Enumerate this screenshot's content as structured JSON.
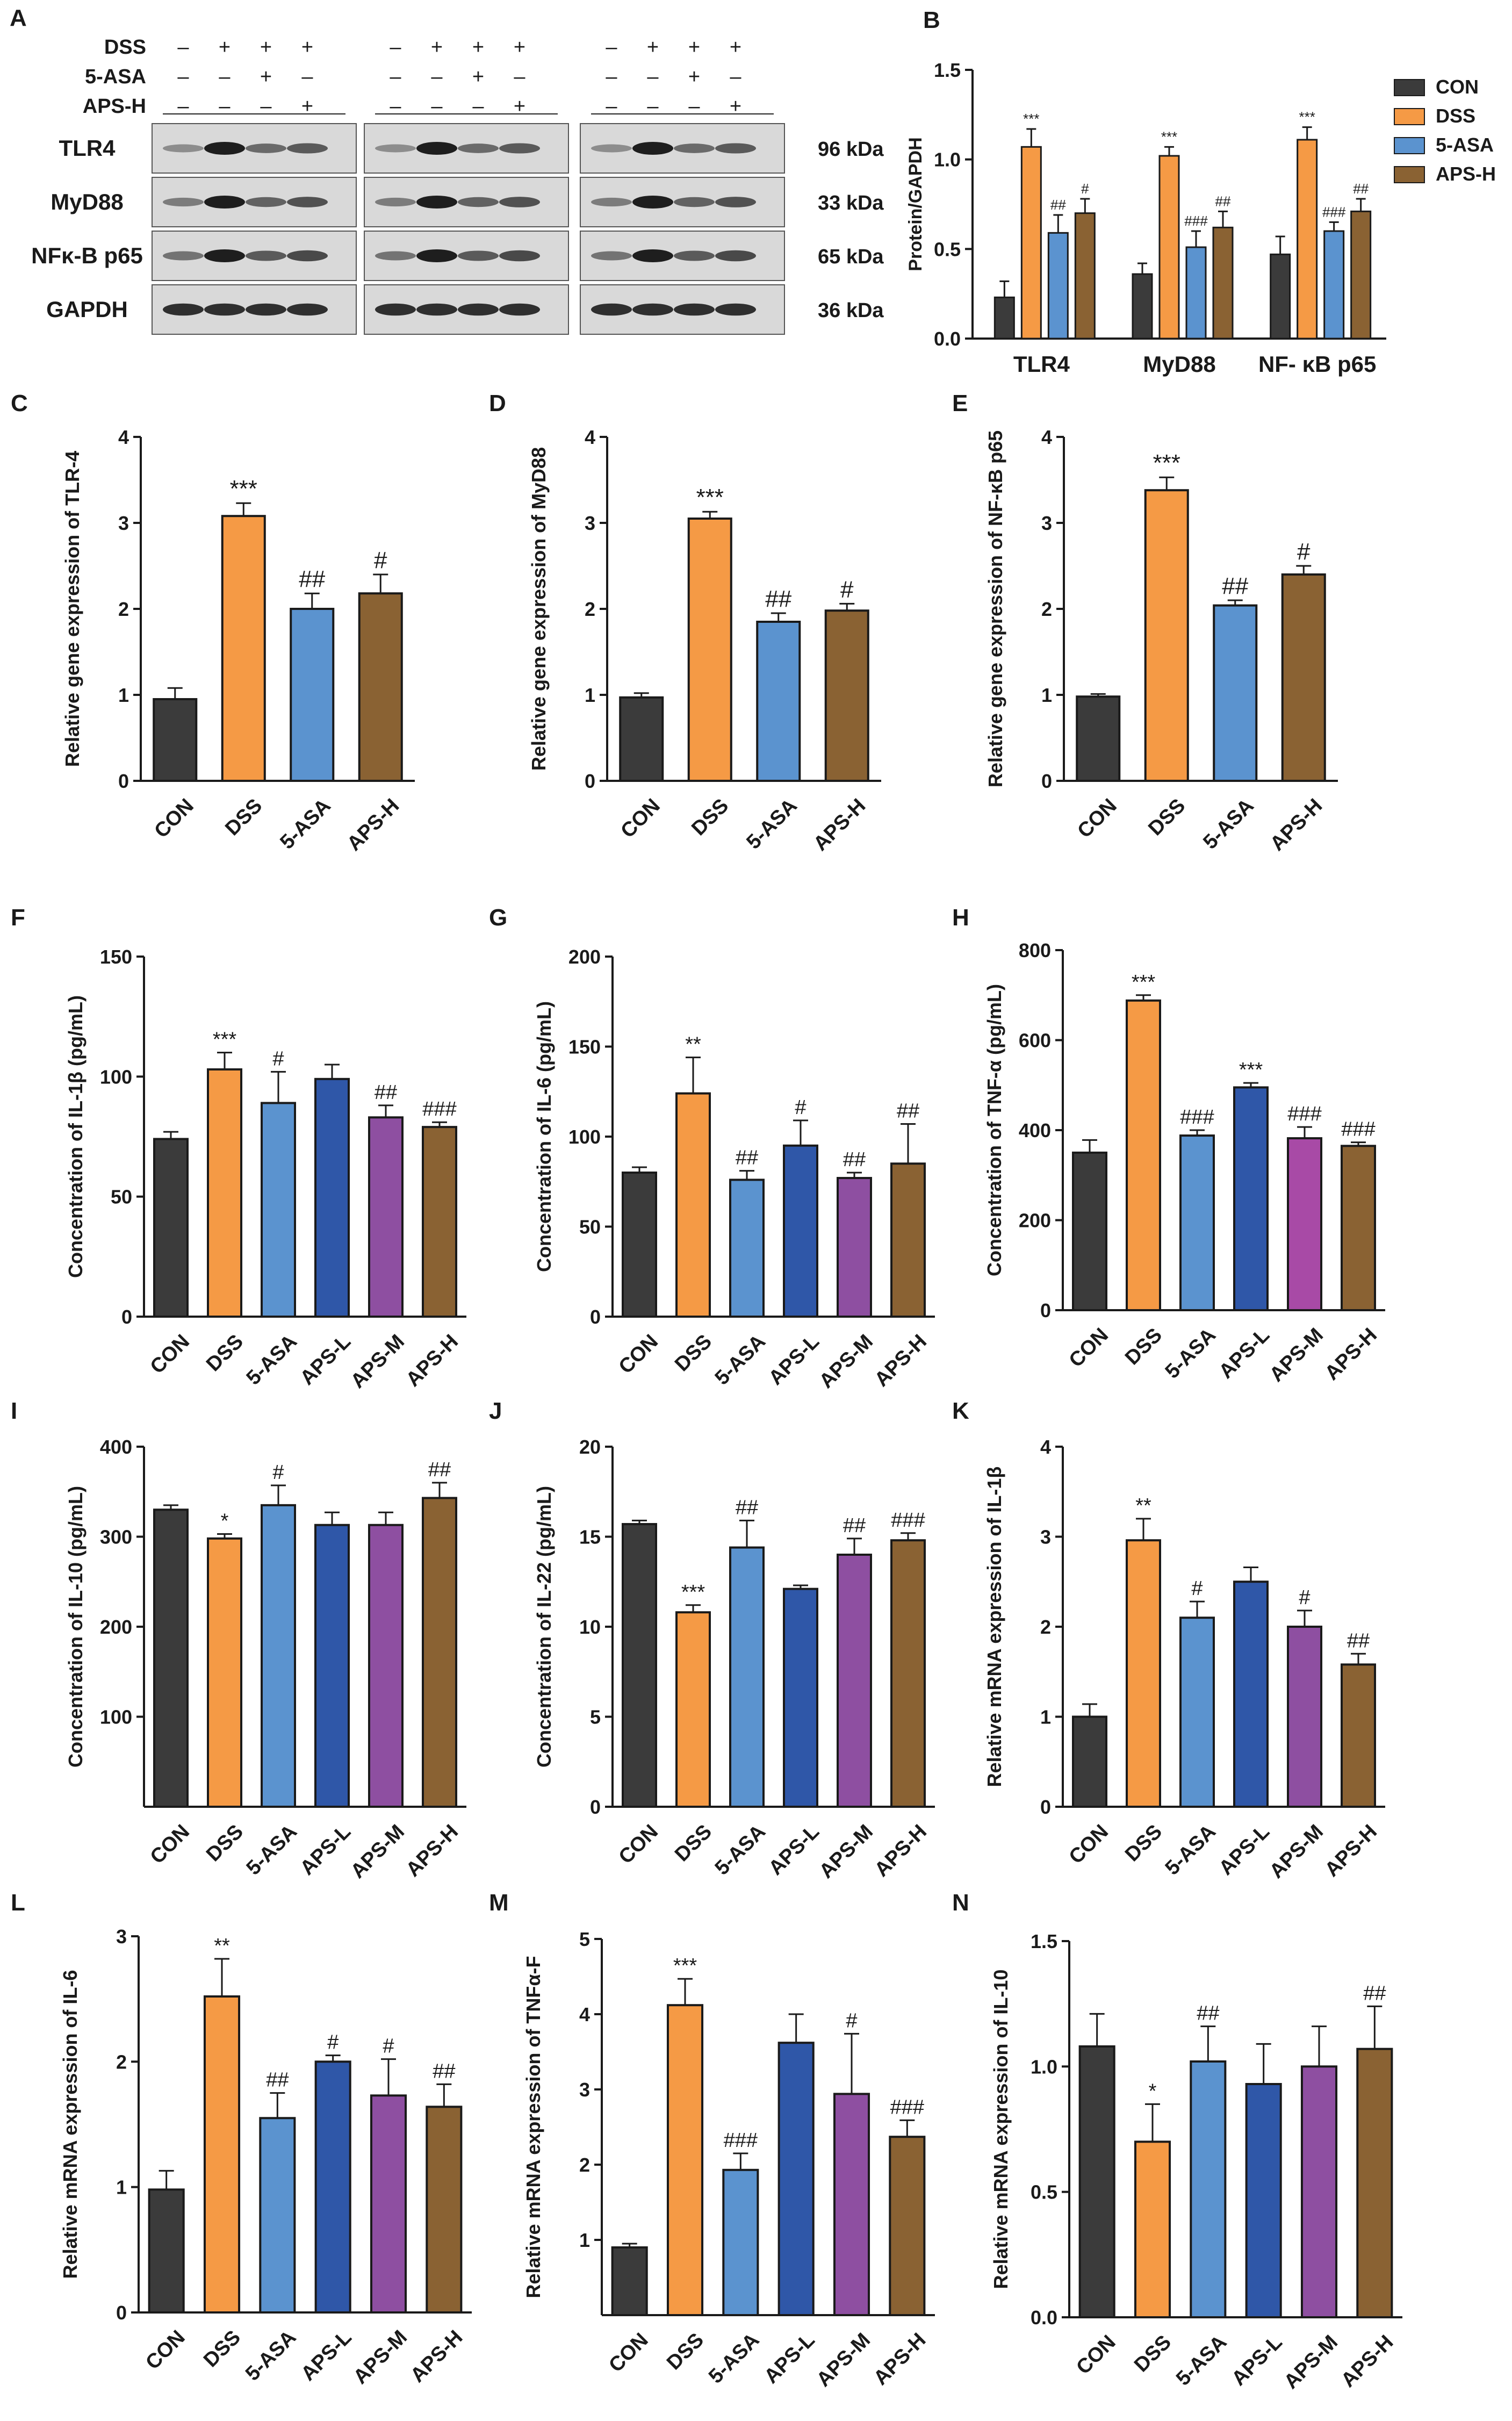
{
  "colors": {
    "CON": "#3b3b3b",
    "DSS": "#f59a45",
    "5-ASA": "#5b93cf",
    "APS-L": "#2f57a8",
    "APS-M": "#8e4fa1",
    "APS-H": "#8a6233",
    "APS-M_H": "#a84aa6"
  },
  "western_blot": {
    "letter": "A",
    "treatment_rows": [
      {
        "label": "DSS",
        "signs": [
          "–",
          "+",
          "+",
          "+"
        ]
      },
      {
        "label": "5-ASA",
        "signs": [
          "–",
          "–",
          "+",
          "–"
        ]
      },
      {
        "label": "APS-H",
        "signs": [
          "–",
          "–",
          "–",
          "+"
        ]
      }
    ],
    "proteins": [
      {
        "label": "TLR4",
        "kda": "96 kDa"
      },
      {
        "label": "MyD88",
        "kda": "33 kDa"
      },
      {
        "label": "NFκ-B p65",
        "kda": "65 kDa"
      },
      {
        "label": "GAPDH",
        "kda": "36 kDa"
      }
    ],
    "band_strength": [
      [
        0.35,
        1.0,
        0.55,
        0.65
      ],
      [
        0.45,
        1.0,
        0.6,
        0.7
      ],
      [
        0.5,
        1.0,
        0.65,
        0.75
      ],
      [
        0.9,
        0.9,
        0.9,
        0.9
      ]
    ]
  },
  "chart_data": [
    {
      "id": "B",
      "letter": "B",
      "type": "bar",
      "title": "",
      "xlabel": "",
      "ylabel": "Protein/GAPDH",
      "ylim": [
        0,
        1.5
      ],
      "yticks": [
        0.0,
        0.5,
        1.0,
        1.5
      ],
      "ytick_labels": [
        "0.0",
        "0.5",
        "1.0",
        "1.5"
      ],
      "categories": [
        "TLR4",
        "MyD88",
        "NF- κB p65"
      ],
      "legend": {
        "position": "right",
        "entries": [
          "CON",
          "DSS",
          "5-ASA",
          "APS-H"
        ]
      },
      "series": [
        {
          "name": "CON",
          "values": [
            0.23,
            0.36,
            0.47
          ],
          "errors": [
            0.09,
            0.06,
            0.1
          ],
          "sig": [
            "",
            "",
            ""
          ]
        },
        {
          "name": "DSS",
          "values": [
            1.07,
            1.02,
            1.11
          ],
          "errors": [
            0.1,
            0.05,
            0.07
          ],
          "sig": [
            "***",
            "***",
            "***"
          ]
        },
        {
          "name": "5-ASA",
          "values": [
            0.59,
            0.51,
            0.6
          ],
          "errors": [
            0.1,
            0.09,
            0.05
          ],
          "sig": [
            "##",
            "###",
            "###"
          ]
        },
        {
          "name": "APS-H",
          "values": [
            0.7,
            0.62,
            0.71
          ],
          "errors": [
            0.08,
            0.09,
            0.07
          ],
          "sig": [
            "#",
            "##",
            "##"
          ]
        }
      ]
    },
    {
      "id": "C",
      "letter": "C",
      "type": "bar",
      "ylabel": "Relative gene expression of TLR-4",
      "ylim": [
        0,
        4
      ],
      "yticks": [
        0,
        1,
        2,
        3,
        4
      ],
      "ytick_labels": [
        "0",
        "1",
        "2",
        "3",
        "4"
      ],
      "categories": [
        "CON",
        "DSS",
        "5-ASA",
        "APS-H"
      ],
      "values": [
        0.95,
        3.08,
        2.0,
        2.18
      ],
      "errors": [
        0.13,
        0.15,
        0.18,
        0.22
      ],
      "sig": [
        "",
        "***",
        "##",
        "#"
      ],
      "bar_colors": [
        "CON",
        "DSS",
        "5-ASA",
        "APS-H"
      ]
    },
    {
      "id": "D",
      "letter": "D",
      "type": "bar",
      "ylabel": "Relative gene expression of MyD88",
      "ylim": [
        0,
        4
      ],
      "yticks": [
        0,
        1,
        2,
        3,
        4
      ],
      "ytick_labels": [
        "0",
        "1",
        "2",
        "3",
        "4"
      ],
      "categories": [
        "CON",
        "DSS",
        "5-ASA",
        "APS-H"
      ],
      "values": [
        0.97,
        3.05,
        1.85,
        1.98
      ],
      "errors": [
        0.05,
        0.08,
        0.1,
        0.08
      ],
      "sig": [
        "",
        "***",
        "##",
        "#"
      ],
      "bar_colors": [
        "CON",
        "DSS",
        "5-ASA",
        "APS-H"
      ]
    },
    {
      "id": "E",
      "letter": "E",
      "type": "bar",
      "ylabel": "Relative gene expression of NF-κB p65",
      "ylim": [
        0,
        4
      ],
      "yticks": [
        0,
        1,
        2,
        3,
        4
      ],
      "ytick_labels": [
        "0",
        "1",
        "2",
        "3",
        "4"
      ],
      "categories": [
        "CON",
        "DSS",
        "5-ASA",
        "APS-H"
      ],
      "values": [
        0.98,
        3.38,
        2.04,
        2.4
      ],
      "errors": [
        0.03,
        0.15,
        0.06,
        0.1
      ],
      "sig": [
        "",
        "***",
        "##",
        "#"
      ],
      "bar_colors": [
        "CON",
        "DSS",
        "5-ASA",
        "APS-H"
      ]
    },
    {
      "id": "F",
      "letter": "F",
      "type": "bar",
      "ylabel": "Concentration of IL-1β (pg/mL)",
      "ylim": [
        0,
        150
      ],
      "yticks": [
        0,
        50,
        100,
        150
      ],
      "ytick_labels": [
        "0",
        "50",
        "100",
        "150"
      ],
      "categories": [
        "CON",
        "DSS",
        "5-ASA",
        "APS-L",
        "APS-M",
        "APS-H"
      ],
      "values": [
        74,
        103,
        89,
        99,
        83,
        79
      ],
      "errors": [
        3,
        7,
        13,
        6,
        5,
        2
      ],
      "sig": [
        "",
        "***",
        "#",
        "",
        "##",
        "###"
      ],
      "bar_colors": [
        "CON",
        "DSS",
        "5-ASA",
        "APS-L",
        "APS-M",
        "APS-H"
      ]
    },
    {
      "id": "G",
      "letter": "G",
      "type": "bar",
      "ylabel": "Concentration of IL-6 (pg/mL)",
      "ylim": [
        0,
        200
      ],
      "yticks": [
        0,
        50,
        100,
        150,
        200
      ],
      "ytick_labels": [
        "0",
        "50",
        "100",
        "150",
        "200"
      ],
      "categories": [
        "CON",
        "DSS",
        "5-ASA",
        "APS-L",
        "APS-M",
        "APS-H"
      ],
      "values": [
        80,
        124,
        76,
        95,
        77,
        85
      ],
      "errors": [
        3,
        20,
        5,
        14,
        3,
        22
      ],
      "sig": [
        "",
        "**",
        "##",
        "#",
        "##",
        "##"
      ],
      "bar_colors": [
        "CON",
        "DSS",
        "5-ASA",
        "APS-L",
        "APS-M",
        "APS-H"
      ]
    },
    {
      "id": "H",
      "letter": "H",
      "type": "bar",
      "ylabel": "Concentration of TNF-α (pg/mL)",
      "ylim": [
        0,
        800
      ],
      "yticks": [
        0,
        200,
        400,
        600,
        800
      ],
      "ytick_labels": [
        "0",
        "200",
        "400",
        "600",
        "800"
      ],
      "categories": [
        "CON",
        "DSS",
        "5-ASA",
        "APS-L",
        "APS-M",
        "APS-H"
      ],
      "values": [
        350,
        688,
        388,
        495,
        382,
        365
      ],
      "errors": [
        28,
        12,
        12,
        10,
        25,
        8
      ],
      "sig": [
        "",
        "***",
        "###",
        "***",
        "###",
        "###"
      ],
      "bar_colors": [
        "CON",
        "DSS",
        "5-ASA",
        "APS-L",
        "APS-M_H",
        "APS-H"
      ]
    },
    {
      "id": "I",
      "letter": "I",
      "type": "bar",
      "ylabel": "Concentration of IL-10 (pg/mL)",
      "ylim": [
        0,
        400
      ],
      "ybase": 0,
      "yticks": [
        100,
        200,
        300,
        400
      ],
      "ytick_labels": [
        "100",
        "200",
        "300",
        "400"
      ],
      "categories": [
        "CON",
        "DSS",
        "5-ASA",
        "APS-L",
        "APS-M",
        "APS-H"
      ],
      "values": [
        330,
        298,
        335,
        313,
        313,
        343
      ],
      "errors": [
        5,
        5,
        22,
        14,
        14,
        17
      ],
      "sig": [
        "",
        "*",
        "#",
        "",
        "",
        "##"
      ],
      "bar_colors": [
        "CON",
        "DSS",
        "5-ASA",
        "APS-L",
        "APS-M",
        "APS-H"
      ]
    },
    {
      "id": "J",
      "letter": "J",
      "type": "bar",
      "ylabel": "Concentration of IL-22 (pg/mL)",
      "ylim": [
        0,
        20
      ],
      "yticks": [
        0,
        5,
        10,
        15,
        20
      ],
      "ytick_labels": [
        "0",
        "5",
        "10",
        "15",
        "20"
      ],
      "categories": [
        "CON",
        "DSS",
        "5-ASA",
        "APS-L",
        "APS-M",
        "APS-H"
      ],
      "values": [
        15.7,
        10.8,
        14.4,
        12.1,
        14.0,
        14.8
      ],
      "errors": [
        0.2,
        0.4,
        1.5,
        0.2,
        0.9,
        0.4
      ],
      "sig": [
        "",
        "***",
        "##",
        "",
        "##",
        "###"
      ],
      "bar_colors": [
        "CON",
        "DSS",
        "5-ASA",
        "APS-L",
        "APS-M",
        "APS-H"
      ]
    },
    {
      "id": "K",
      "letter": "K",
      "type": "bar",
      "ylabel": "Relative mRNA expression of IL-1β",
      "ylim": [
        0,
        4
      ],
      "yticks": [
        0,
        1,
        2,
        3,
        4
      ],
      "ytick_labels": [
        "0",
        "1",
        "2",
        "3",
        "4"
      ],
      "categories": [
        "CON",
        "DSS",
        "5-ASA",
        "APS-L",
        "APS-M",
        "APS-H"
      ],
      "values": [
        1.0,
        2.96,
        2.1,
        2.5,
        2.0,
        1.58
      ],
      "errors": [
        0.14,
        0.24,
        0.18,
        0.16,
        0.18,
        0.12
      ],
      "sig": [
        "",
        "**",
        "#",
        "",
        "#",
        "##"
      ],
      "bar_colors": [
        "CON",
        "DSS",
        "5-ASA",
        "APS-L",
        "APS-M",
        "APS-H"
      ]
    },
    {
      "id": "L",
      "letter": "L",
      "type": "bar",
      "ylabel": "Relative mRNA expression of IL-6",
      "ylim": [
        0,
        3
      ],
      "yticks": [
        0,
        1,
        2,
        3
      ],
      "ytick_labels": [
        "0",
        "1",
        "2",
        "3"
      ],
      "categories": [
        "CON",
        "DSS",
        "5-ASA",
        "APS-L",
        "APS-M",
        "APS-H"
      ],
      "values": [
        0.98,
        2.52,
        1.55,
        2.0,
        1.73,
        1.64
      ],
      "errors": [
        0.15,
        0.3,
        0.2,
        0.05,
        0.29,
        0.18
      ],
      "sig": [
        "",
        "**",
        "##",
        "#",
        "#",
        "##"
      ],
      "bar_colors": [
        "CON",
        "DSS",
        "5-ASA",
        "APS-L",
        "APS-M",
        "APS-H"
      ]
    },
    {
      "id": "M",
      "letter": "M",
      "type": "bar",
      "ylabel": "Relative mRNA expression of TNFα-F",
      "ylim": [
        0,
        5
      ],
      "yticks": [
        1,
        2,
        3,
        4,
        5
      ],
      "ytick_labels": [
        "1",
        "2",
        "3",
        "4",
        "5"
      ],
      "categories": [
        "CON",
        "DSS",
        "5-ASA",
        "APS-L",
        "APS-M",
        "APS-H"
      ],
      "values": [
        0.9,
        4.12,
        1.93,
        3.62,
        2.94,
        2.37
      ],
      "errors": [
        0.05,
        0.35,
        0.22,
        0.38,
        0.8,
        0.22
      ],
      "sig": [
        "",
        "***",
        "###",
        "",
        "#",
        "###"
      ],
      "bar_colors": [
        "CON",
        "DSS",
        "5-ASA",
        "APS-L",
        "APS-M",
        "APS-H"
      ]
    },
    {
      "id": "N",
      "letter": "N",
      "type": "bar",
      "ylabel": "Relative mRNA expression of IL-10",
      "ylim": [
        0,
        1.5
      ],
      "yticks": [
        0.0,
        0.5,
        1.0,
        1.5
      ],
      "ytick_labels": [
        "0.0",
        "0.5",
        "1.0",
        "1.5"
      ],
      "categories": [
        "CON",
        "DSS",
        "5-ASA",
        "APS-L",
        "APS-M",
        "APS-H"
      ],
      "values": [
        1.08,
        0.7,
        1.02,
        0.93,
        1.0,
        1.07
      ],
      "errors": [
        0.13,
        0.15,
        0.14,
        0.16,
        0.16,
        0.17
      ],
      "sig": [
        "",
        "*",
        "##",
        "",
        "",
        "##"
      ],
      "bar_colors": [
        "CON",
        "DSS",
        "5-ASA",
        "APS-L",
        "APS-M",
        "APS-H"
      ]
    }
  ]
}
